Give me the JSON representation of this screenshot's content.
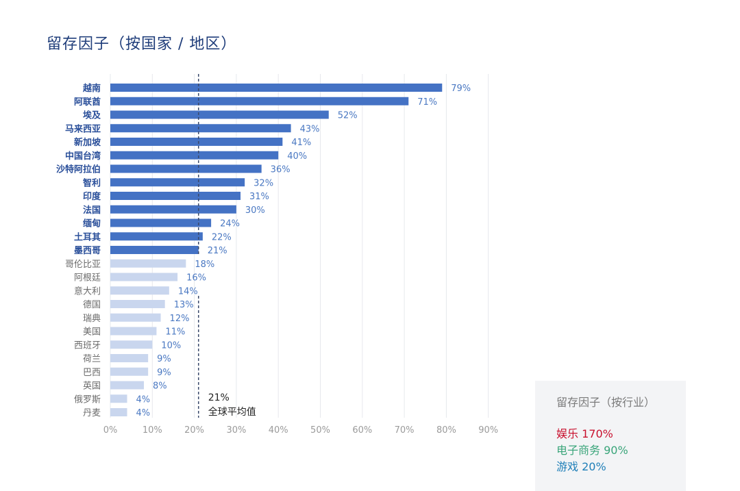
{
  "chart_data": {
    "type": "bar",
    "orientation": "horizontal",
    "title": "留存因子（按国家 / 地区）",
    "categories": [
      "越南",
      "阿联酋",
      "埃及",
      "马来西亚",
      "新加坡",
      "中国台湾",
      "沙特阿拉伯",
      "智利",
      "印度",
      "法国",
      "缅甸",
      "土耳其",
      "墨西哥",
      "哥伦比亚",
      "阿根廷",
      "意大利",
      "德国",
      "瑞典",
      "美国",
      "西班牙",
      "荷兰",
      "巴西",
      "英国",
      "俄罗斯",
      "丹麦"
    ],
    "values": [
      79,
      71,
      52,
      43,
      41,
      40,
      36,
      32,
      31,
      30,
      24,
      22,
      21,
      18,
      16,
      14,
      13,
      12,
      11,
      10,
      9,
      9,
      8,
      4,
      4
    ],
    "value_labels": [
      "79%",
      "71%",
      "52%",
      "43%",
      "41%",
      "40%",
      "36%",
      "32%",
      "31%",
      "30%",
      "24%",
      "22%",
      "21%",
      "18%",
      "16%",
      "14%",
      "13%",
      "12%",
      "11%",
      "10%",
      "9%",
      "9%",
      "8%",
      "4%",
      "4%"
    ],
    "xlim": [
      0,
      90
    ],
    "x_ticks": [
      0,
      10,
      20,
      30,
      40,
      50,
      60,
      70,
      80,
      90
    ],
    "x_tick_labels": [
      "0%",
      "10%",
      "20%",
      "30%",
      "40%",
      "50%",
      "60%",
      "70%",
      "80%",
      "90%"
    ],
    "grid": true,
    "reference_line": {
      "value": 21,
      "value_label": "21%",
      "label": "全球平均值"
    },
    "colors": {
      "above_average": "#4472c4",
      "below_average": "#c9d6ee",
      "reference_line": "#3b4a6b"
    }
  },
  "side_panel": {
    "title": "留存因子（按行业）",
    "items": [
      {
        "label": "娱乐 170%",
        "color": "#c8102e"
      },
      {
        "label": "电子商务 90%",
        "color": "#3aa57a"
      },
      {
        "label": "游戏 20%",
        "color": "#1f7fb8"
      }
    ]
  }
}
